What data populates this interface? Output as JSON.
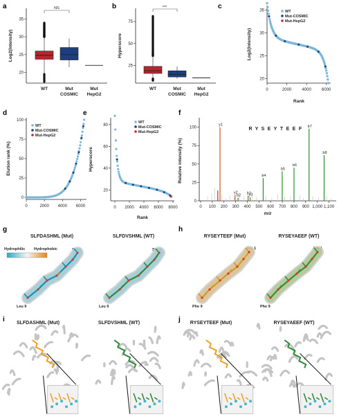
{
  "panels": [
    "a",
    "b",
    "c",
    "d",
    "e",
    "f",
    "g",
    "h",
    "i",
    "j"
  ],
  "colors": {
    "wt": "#b8252e",
    "cosmic": "#1d3f7d",
    "hepg2": "#2b2b2b",
    "wt_scatter": "#7bb8d8",
    "cosmic_scatter": "#1d3f7d",
    "hepg2_scatter": "#c0282d",
    "peak_b": "#2d8c2d",
    "peak_y": "#c65a1a",
    "mut_res": "#f0a020",
    "wt_res": "#2e8b3a"
  },
  "a": {
    "ylabel": "Log2(Intensity)",
    "ticks": [
      "20",
      "25",
      "30",
      "35"
    ],
    "ns": "NS",
    "cats": [
      "WT",
      "Mut\nCOSMIC",
      "Mut\nHepG2"
    ],
    "cat_lines": [
      [
        "WT"
      ],
      [
        "Mut",
        "COSMIC"
      ],
      [
        "Mut",
        "HepG2"
      ]
    ]
  },
  "b": {
    "ylabel": "Hyperscore",
    "ticks": [
      "25",
      "50",
      "75"
    ],
    "sig": "***",
    "cat_lines": [
      [
        "WT"
      ],
      [
        "Mut",
        "COSMIC"
      ],
      [
        "Mut",
        "HepG2"
      ]
    ]
  },
  "c": {
    "ylabel": "Log2(Intensity)",
    "xlabel": "Rank",
    "yticks": [
      "20",
      "25",
      "30",
      "35"
    ],
    "xticks": [
      "0",
      "2000",
      "4000",
      "6000"
    ],
    "legend": [
      "WT",
      "Mut-COSMIC",
      "Mut-HepG2"
    ]
  },
  "d": {
    "ylabel": "Elution rank (%)",
    "yticks": [
      "0",
      "25",
      "50",
      "75",
      "100"
    ],
    "xticks": [
      "0",
      "2000",
      "4000",
      "6000"
    ],
    "legend": [
      "WT",
      "Mut-COSMIC",
      "Mut-HepG2"
    ]
  },
  "e": {
    "ylabel": "Hyperscore",
    "xlabel": "Rank",
    "yticks": [
      "20",
      "40",
      "60",
      "80"
    ],
    "xticks": [
      "0",
      "2000",
      "4000",
      "6000",
      "8000"
    ],
    "legend": [
      "WT",
      "Mut-COSMIC",
      "Mut-HepG2"
    ]
  },
  "f": {
    "ylabel": "Relative intensity (%)",
    "xlabel": "m/z",
    "yticks": [
      "0",
      "25",
      "50",
      "75",
      "100"
    ],
    "xticks": [
      "0",
      "100",
      "200",
      "300",
      "400",
      "500",
      "600",
      "700",
      "800",
      "900",
      "1,000",
      "1,100"
    ],
    "sequence": "RYSEYTEEF",
    "peak_labels": [
      "y1",
      "y2",
      "y3",
      "b2",
      "b3",
      "b4",
      "b5",
      "b6",
      "b7",
      "b8"
    ]
  },
  "g": {
    "titles": [
      "SLFDASHML (Mut)",
      "SLFDVSHML (WT)"
    ],
    "scale_left": "Hydrophilic",
    "scale_right": "Hydrophobic",
    "res_top": "Ser 1",
    "res_bottom": "Leu 9"
  },
  "h": {
    "titles": [
      "RYSEYTEEF (Mut)",
      "RYSEYAEEF (WT)"
    ],
    "res_top": "Arg 1",
    "res_bottom": "Phe 9"
  },
  "i": {
    "titles": [
      "SLFDASHML (Mut)",
      "SLFDVSHML (WT)"
    ]
  },
  "j": {
    "titles": [
      "RYSEYTEEF (Mut)",
      "RYSEYAEEF (WT)"
    ]
  },
  "chart_data": [
    {
      "panel": "a",
      "type": "box",
      "title": "",
      "ylabel": "Log2(Intensity)",
      "categories": [
        "WT",
        "Mut COSMIC",
        "Mut HepG2"
      ],
      "boxes": [
        {
          "median": 24.8,
          "q1": 23.7,
          "q3": 26.0,
          "whislo": 19.5,
          "whishi": 30.0
        },
        {
          "median": 25.0,
          "q1": 23.5,
          "q3": 27.0,
          "whislo": 21.5,
          "whishi": 29.5
        },
        {
          "median": 22.0,
          "q1": 22.0,
          "q3": 22.0,
          "whislo": 22.0,
          "whishi": 22.0
        }
      ],
      "ylim": [
        17,
        38
      ]
    },
    {
      "panel": "b",
      "type": "box",
      "title": "",
      "ylabel": "Hyperscore",
      "categories": [
        "WT",
        "Mut COSMIC",
        "Mut HepG2"
      ],
      "boxes": [
        {
          "median": 19,
          "q1": 16,
          "q3": 24,
          "whislo": 10,
          "whishi": 36
        },
        {
          "median": 15,
          "q1": 12,
          "q3": 19,
          "whislo": 10,
          "whishi": 24
        },
        {
          "median": 11,
          "q1": 11,
          "q3": 11,
          "whislo": 11,
          "whishi": 11
        }
      ],
      "ylim": [
        5,
        90
      ]
    },
    {
      "panel": "c",
      "type": "scatter",
      "xlabel": "Rank",
      "ylabel": "Log2(Intensity)",
      "xlim": [
        0,
        6300
      ],
      "ylim": [
        19,
        36
      ]
    },
    {
      "panel": "d",
      "type": "scatter",
      "xlabel": "",
      "ylabel": "Elution rank (%)",
      "xlim": [
        0,
        6500
      ],
      "ylim": [
        0,
        100
      ]
    },
    {
      "panel": "e",
      "type": "scatter",
      "xlabel": "Rank",
      "ylabel": "Hyperscore",
      "xlim": [
        0,
        8000
      ],
      "ylim": [
        10,
        85
      ]
    },
    {
      "panel": "f",
      "type": "bar",
      "xlabel": "m/z",
      "ylabel": "Relative intensity (%)",
      "xlim": [
        0,
        1150
      ],
      "ylim": [
        0,
        110
      ]
    }
  ]
}
